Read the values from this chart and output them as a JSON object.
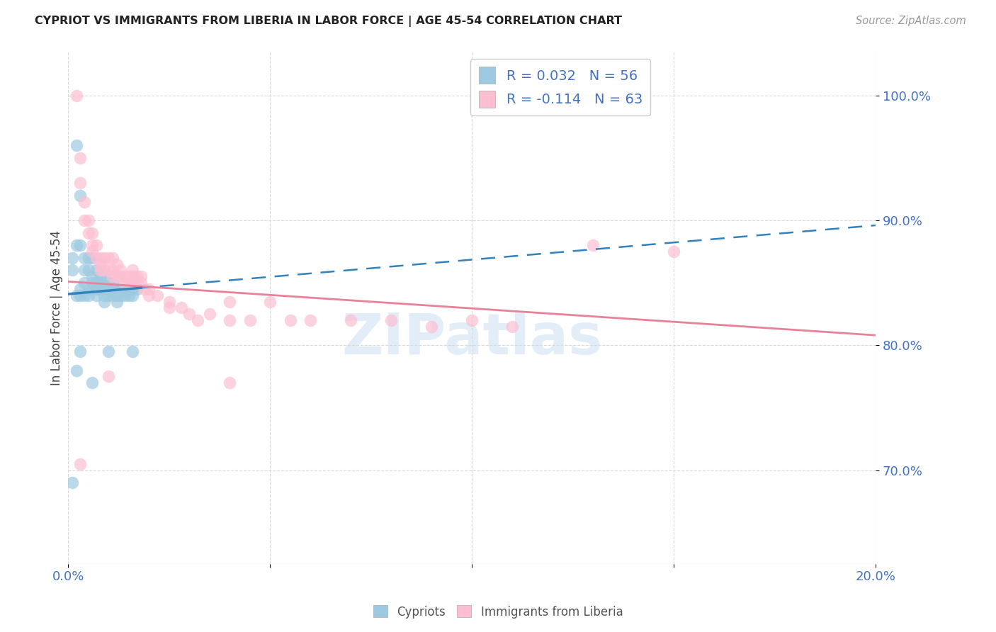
{
  "title": "CYPRIOT VS IMMIGRANTS FROM LIBERIA IN LABOR FORCE | AGE 45-54 CORRELATION CHART",
  "source": "Source: ZipAtlas.com",
  "ylabel": "In Labor Force | Age 45-54",
  "xlim": [
    0.0,
    0.2
  ],
  "ylim": [
    0.625,
    1.035
  ],
  "yticks": [
    0.7,
    0.8,
    0.9,
    1.0
  ],
  "ytick_labels": [
    "70.0%",
    "80.0%",
    "90.0%",
    "100.0%"
  ],
  "xticks": [
    0.0,
    0.05,
    0.1,
    0.15,
    0.2
  ],
  "xtick_labels": [
    "0.0%",
    "",
    "",
    "",
    "20.0%"
  ],
  "blue_scatter_color": "#9ecae1",
  "pink_scatter_color": "#fcbfd2",
  "blue_line_color": "#3182bd",
  "pink_line_color": "#e8829a",
  "axis_tick_color": "#4472c4",
  "grid_color": "#d9d9d9",
  "watermark_color": "#c8ddf0",
  "legend_R_blue": "R = 0.032",
  "legend_N_blue": "N = 56",
  "legend_R_pink": "R = -0.114",
  "legend_N_pink": "N = 63",
  "blue_trend_x0": 0.0,
  "blue_trend_x1": 0.2,
  "blue_trend_y0": 0.841,
  "blue_trend_y1": 0.896,
  "pink_trend_x0": 0.0,
  "pink_trend_x1": 0.2,
  "pink_trend_y0": 0.851,
  "pink_trend_y1": 0.808,
  "blue_points_x": [
    0.001,
    0.001,
    0.002,
    0.002,
    0.002,
    0.003,
    0.003,
    0.003,
    0.003,
    0.004,
    0.004,
    0.004,
    0.004,
    0.005,
    0.005,
    0.005,
    0.005,
    0.006,
    0.006,
    0.006,
    0.006,
    0.007,
    0.007,
    0.007,
    0.007,
    0.008,
    0.008,
    0.008,
    0.009,
    0.009,
    0.009,
    0.009,
    0.01,
    0.01,
    0.01,
    0.011,
    0.011,
    0.011,
    0.012,
    0.012,
    0.012,
    0.013,
    0.013,
    0.014,
    0.014,
    0.015,
    0.015,
    0.016,
    0.016,
    0.017,
    0.002,
    0.003,
    0.006,
    0.01,
    0.016,
    0.001
  ],
  "blue_points_y": [
    0.87,
    0.86,
    0.96,
    0.88,
    0.84,
    0.92,
    0.88,
    0.845,
    0.84,
    0.87,
    0.86,
    0.85,
    0.84,
    0.87,
    0.86,
    0.845,
    0.84,
    0.87,
    0.855,
    0.85,
    0.845,
    0.86,
    0.85,
    0.845,
    0.84,
    0.855,
    0.85,
    0.845,
    0.855,
    0.845,
    0.84,
    0.835,
    0.85,
    0.845,
    0.84,
    0.85,
    0.845,
    0.84,
    0.845,
    0.84,
    0.835,
    0.845,
    0.84,
    0.845,
    0.84,
    0.845,
    0.84,
    0.845,
    0.84,
    0.845,
    0.78,
    0.795,
    0.77,
    0.795,
    0.795,
    0.69
  ],
  "pink_points_x": [
    0.002,
    0.003,
    0.003,
    0.004,
    0.004,
    0.005,
    0.005,
    0.006,
    0.006,
    0.006,
    0.007,
    0.007,
    0.008,
    0.008,
    0.008,
    0.009,
    0.009,
    0.01,
    0.01,
    0.011,
    0.011,
    0.011,
    0.012,
    0.012,
    0.013,
    0.013,
    0.014,
    0.014,
    0.015,
    0.015,
    0.016,
    0.016,
    0.016,
    0.017,
    0.017,
    0.018,
    0.018,
    0.019,
    0.02,
    0.02,
    0.022,
    0.025,
    0.025,
    0.028,
    0.03,
    0.032,
    0.035,
    0.04,
    0.04,
    0.045,
    0.05,
    0.055,
    0.06,
    0.07,
    0.08,
    0.09,
    0.1,
    0.11,
    0.13,
    0.15,
    0.003,
    0.01,
    0.04
  ],
  "pink_points_y": [
    1.0,
    0.95,
    0.93,
    0.915,
    0.9,
    0.9,
    0.89,
    0.89,
    0.88,
    0.875,
    0.88,
    0.87,
    0.87,
    0.865,
    0.86,
    0.87,
    0.86,
    0.87,
    0.86,
    0.87,
    0.86,
    0.855,
    0.865,
    0.855,
    0.86,
    0.855,
    0.855,
    0.85,
    0.855,
    0.85,
    0.86,
    0.855,
    0.85,
    0.855,
    0.85,
    0.855,
    0.85,
    0.845,
    0.845,
    0.84,
    0.84,
    0.835,
    0.83,
    0.83,
    0.825,
    0.82,
    0.825,
    0.82,
    0.835,
    0.82,
    0.835,
    0.82,
    0.82,
    0.82,
    0.82,
    0.815,
    0.82,
    0.815,
    0.88,
    0.875,
    0.705,
    0.775,
    0.77
  ]
}
